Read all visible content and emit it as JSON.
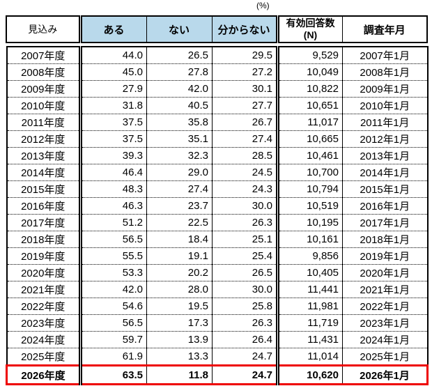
{
  "percent_label": "(%)",
  "colors": {
    "header_fill": "#B9D9EB",
    "highlight_border": "#EE0000",
    "border": "#000000"
  },
  "table": {
    "headers": {
      "outlook": "見込み",
      "yes": "ある",
      "no": "ない",
      "dont_know": "分からない",
      "valid_n_line1": "有効回答数",
      "valid_n_line2": "(N)",
      "survey_date": "調査年月"
    },
    "rows": [
      {
        "year": "2007年度",
        "yes": "44.0",
        "no": "26.5",
        "dont_know": "29.5",
        "n": "9,529",
        "survey": "2007年1月"
      },
      {
        "year": "2008年度",
        "yes": "45.0",
        "no": "27.8",
        "dont_know": "27.2",
        "n": "10,049",
        "survey": "2008年1月"
      },
      {
        "year": "2009年度",
        "yes": "27.9",
        "no": "42.0",
        "dont_know": "30.1",
        "n": "10,822",
        "survey": "2009年1月"
      },
      {
        "year": "2010年度",
        "yes": "31.8",
        "no": "40.5",
        "dont_know": "27.7",
        "n": "10,651",
        "survey": "2010年1月"
      },
      {
        "year": "2011年度",
        "yes": "37.5",
        "no": "35.8",
        "dont_know": "26.7",
        "n": "11,017",
        "survey": "2011年1月"
      },
      {
        "year": "2012年度",
        "yes": "37.5",
        "no": "35.1",
        "dont_know": "27.4",
        "n": "10,665",
        "survey": "2012年1月"
      },
      {
        "year": "2013年度",
        "yes": "39.3",
        "no": "32.3",
        "dont_know": "28.5",
        "n": "10,461",
        "survey": "2013年1月"
      },
      {
        "year": "2014年度",
        "yes": "46.4",
        "no": "29.0",
        "dont_know": "24.5",
        "n": "10,700",
        "survey": "2014年1月"
      },
      {
        "year": "2015年度",
        "yes": "48.3",
        "no": "27.4",
        "dont_know": "24.3",
        "n": "10,794",
        "survey": "2015年1月"
      },
      {
        "year": "2016年度",
        "yes": "46.3",
        "no": "23.7",
        "dont_know": "30.0",
        "n": "10,519",
        "survey": "2016年1月"
      },
      {
        "year": "2017年度",
        "yes": "51.2",
        "no": "22.5",
        "dont_know": "26.3",
        "n": "10,195",
        "survey": "2017年1月"
      },
      {
        "year": "2018年度",
        "yes": "56.5",
        "no": "18.4",
        "dont_know": "25.1",
        "n": "10,161",
        "survey": "2018年1月"
      },
      {
        "year": "2019年度",
        "yes": "55.5",
        "no": "19.1",
        "dont_know": "25.4",
        "n": "9,856",
        "survey": "2019年1月"
      },
      {
        "year": "2020年度",
        "yes": "53.3",
        "no": "20.2",
        "dont_know": "26.5",
        "n": "10,405",
        "survey": "2020年1月"
      },
      {
        "year": "2021年度",
        "yes": "42.0",
        "no": "28.0",
        "dont_know": "30.0",
        "n": "11,441",
        "survey": "2021年1月"
      },
      {
        "year": "2022年度",
        "yes": "54.6",
        "no": "19.5",
        "dont_know": "25.8",
        "n": "11,981",
        "survey": "2022年1月"
      },
      {
        "year": "2023年度",
        "yes": "56.5",
        "no": "17.3",
        "dont_know": "26.3",
        "n": "11,719",
        "survey": "2023年1月"
      },
      {
        "year": "2024年度",
        "yes": "59.7",
        "no": "13.9",
        "dont_know": "26.4",
        "n": "11,431",
        "survey": "2024年1月"
      },
      {
        "year": "2025年度",
        "yes": "61.9",
        "no": "13.3",
        "dont_know": "24.7",
        "n": "11,014",
        "survey": "2025年1月"
      },
      {
        "year": "2026年度",
        "yes": "63.5",
        "no": "11.8",
        "dont_know": "24.7",
        "n": "10,620",
        "survey": "2026年1月",
        "highlight": true
      }
    ]
  },
  "chart_data": {
    "type": "table",
    "title": "(%)",
    "columns": [
      "見込み",
      "ある",
      "ない",
      "分からない",
      "有効回答数(N)",
      "調査年月"
    ],
    "categories": [
      "2007年度",
      "2008年度",
      "2009年度",
      "2010年度",
      "2011年度",
      "2012年度",
      "2013年度",
      "2014年度",
      "2015年度",
      "2016年度",
      "2017年度",
      "2018年度",
      "2019年度",
      "2020年度",
      "2021年度",
      "2022年度",
      "2023年度",
      "2024年度",
      "2025年度",
      "2026年度"
    ],
    "series": [
      {
        "name": "ある",
        "values": [
          44.0,
          45.0,
          27.9,
          31.8,
          37.5,
          37.5,
          39.3,
          46.4,
          48.3,
          46.3,
          51.2,
          56.5,
          55.5,
          53.3,
          42.0,
          54.6,
          56.5,
          59.7,
          61.9,
          63.5
        ]
      },
      {
        "name": "ない",
        "values": [
          26.5,
          27.8,
          42.0,
          40.5,
          35.8,
          35.1,
          32.3,
          29.0,
          27.4,
          23.7,
          22.5,
          18.4,
          19.1,
          20.2,
          28.0,
          19.5,
          17.3,
          13.9,
          13.3,
          11.8
        ]
      },
      {
        "name": "分からない",
        "values": [
          29.5,
          27.2,
          30.1,
          27.7,
          26.7,
          27.4,
          28.5,
          24.5,
          24.3,
          30.0,
          26.3,
          25.1,
          25.4,
          26.5,
          30.0,
          25.8,
          26.3,
          26.4,
          24.7,
          24.7
        ]
      },
      {
        "name": "有効回答数(N)",
        "values": [
          9529,
          10049,
          10822,
          10651,
          11017,
          10665,
          10461,
          10700,
          10794,
          10519,
          10195,
          10161,
          9856,
          10405,
          11441,
          11981,
          11719,
          11431,
          11014,
          10620
        ]
      }
    ],
    "survey_dates": [
      "2007年1月",
      "2008年1月",
      "2009年1月",
      "2010年1月",
      "2011年1月",
      "2012年1月",
      "2013年1月",
      "2014年1月",
      "2015年1月",
      "2016年1月",
      "2017年1月",
      "2018年1月",
      "2019年1月",
      "2020年1月",
      "2021年1月",
      "2022年1月",
      "2023年1月",
      "2024年1月",
      "2025年1月",
      "2026年1月"
    ],
    "highlighted_row": "2026年度"
  }
}
